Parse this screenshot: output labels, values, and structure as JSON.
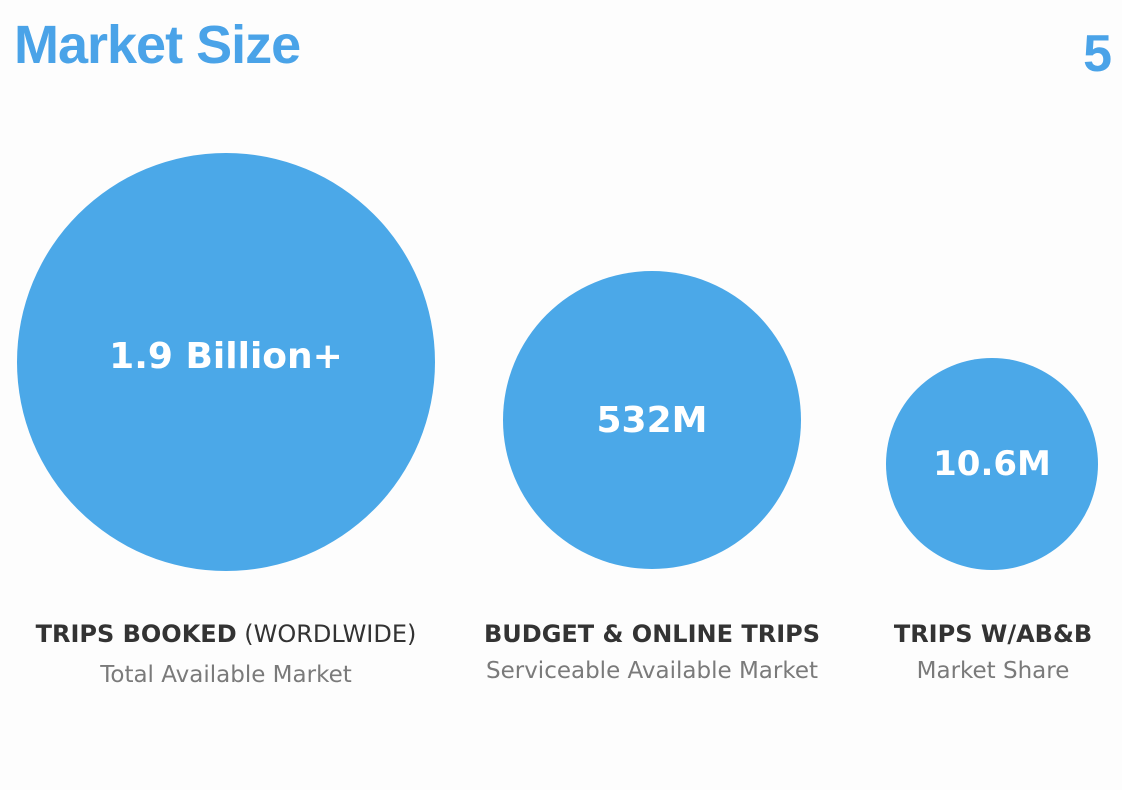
{
  "title": "Market Size",
  "page_number": "5",
  "colors": {
    "accent": "#4aa3e8",
    "bubble": "#4ba8e8"
  },
  "markets": [
    {
      "value": "1.9 Billion+",
      "label_bold": "TRIPS BOOKED",
      "label_normal": " (WORDLWIDE)",
      "sublabel": "Total Available Market"
    },
    {
      "value": "532M",
      "label_bold": "BUDGET & ONLINE TRIPS",
      "label_normal": "",
      "sublabel": "Serviceable Available Market"
    },
    {
      "value": "10.6M",
      "label_bold": "TRIPS W/AB&B",
      "label_normal": "",
      "sublabel": "Market Share"
    }
  ]
}
